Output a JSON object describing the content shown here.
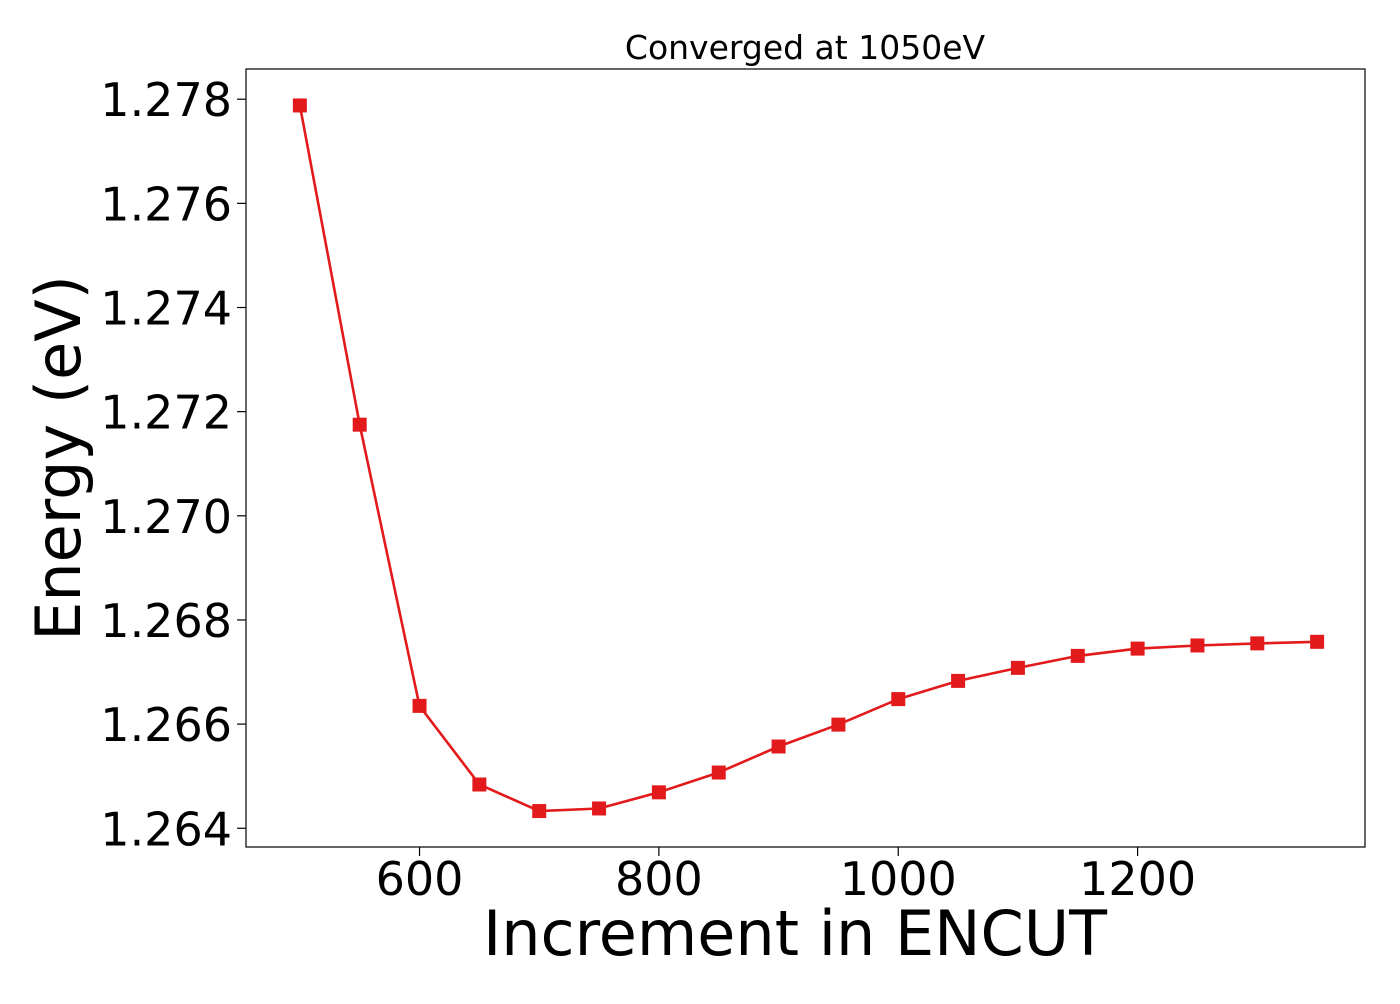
{
  "chart_data": {
    "type": "line",
    "title": "Converged at 1050eV",
    "xlabel": "Increment in ENCUT",
    "ylabel": "Energy (eV)",
    "xlim": [
      455,
      1390
    ],
    "ylim": [
      1.26364,
      1.27858
    ],
    "xticks": [
      600,
      800,
      1000,
      1200
    ],
    "xtick_labels": [
      "600",
      "800",
      "1000",
      "1200"
    ],
    "yticks": [
      1.264,
      1.266,
      1.268,
      1.27,
      1.272,
      1.274,
      1.276,
      1.278
    ],
    "ytick_labels": [
      "1.264",
      "1.266",
      "1.268",
      "1.270",
      "1.272",
      "1.274",
      "1.276",
      "1.278"
    ],
    "grid": false,
    "legend": "none",
    "series": [
      {
        "color": "#e31a1c",
        "marker": "square",
        "x": [
          500,
          550,
          600,
          650,
          700,
          750,
          800,
          850,
          900,
          950,
          1000,
          1050,
          1100,
          1150,
          1200,
          1250,
          1300,
          1350
        ],
        "y": [
          1.27788,
          1.27175,
          1.26635,
          1.26484,
          1.26433,
          1.26438,
          1.26469,
          1.26507,
          1.26557,
          1.26599,
          1.26648,
          1.26683,
          1.26708,
          1.26731,
          1.26745,
          1.26751,
          1.26755,
          1.26758
        ]
      }
    ]
  }
}
